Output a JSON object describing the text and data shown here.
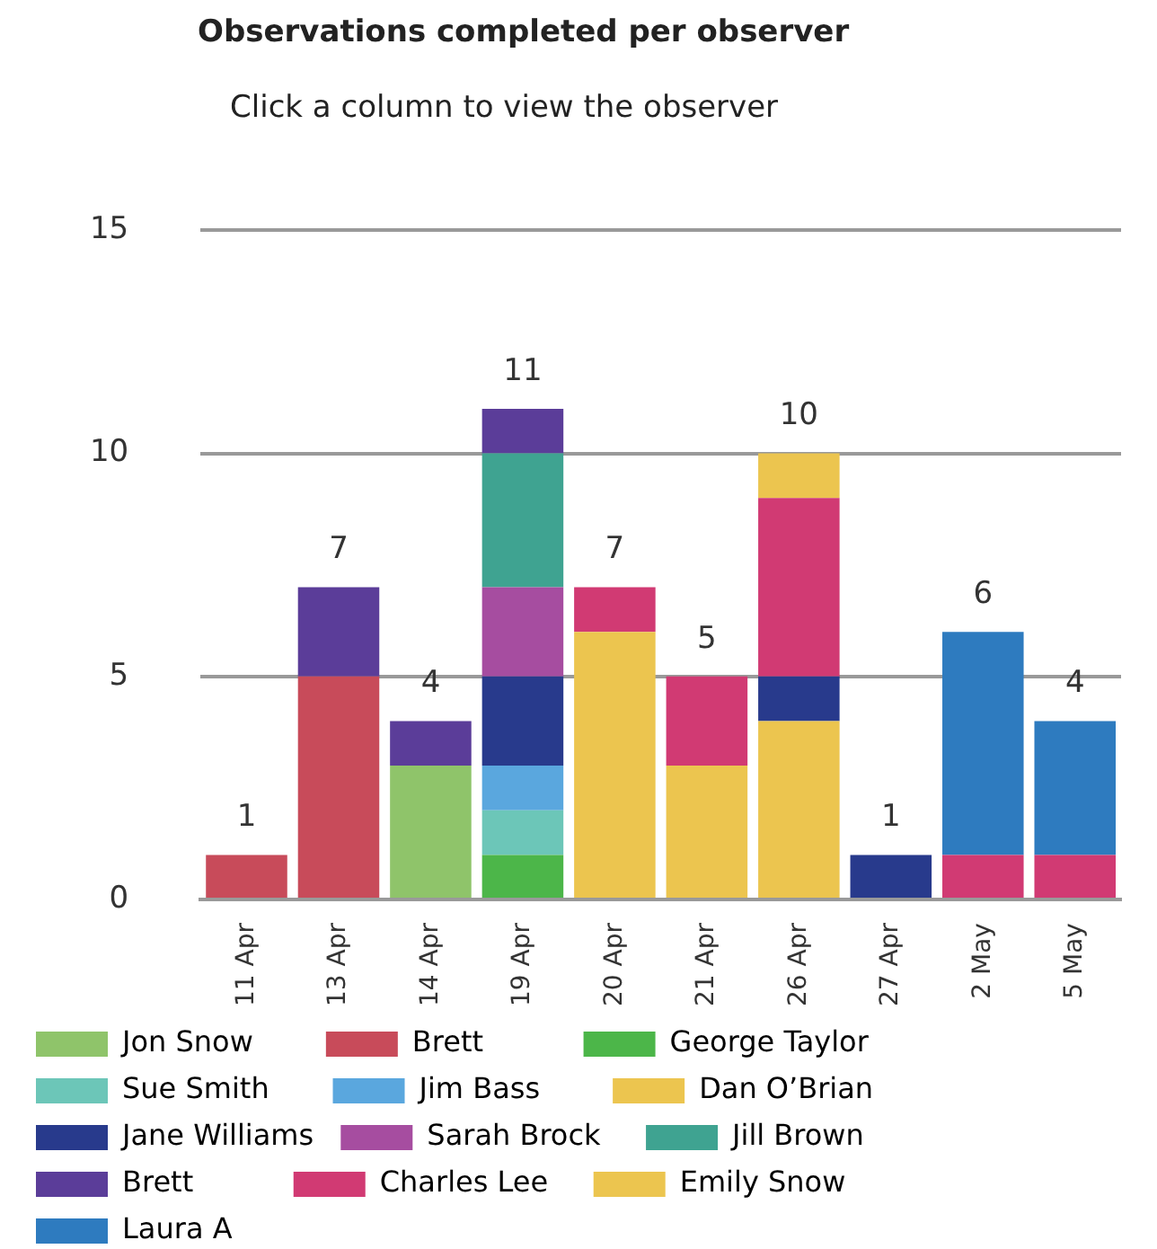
{
  "chart_data": {
    "type": "bar",
    "title": "Observations completed per observer",
    "subtitle": "Click a column to view the observer",
    "categories": [
      "11 Apr",
      "13 Apr",
      "14 Apr",
      "19 Apr",
      "20 Apr",
      "21 Apr",
      "26 Apr",
      "27 Apr",
      "2 May",
      "5 May"
    ],
    "stacked": true,
    "ylim": [
      0,
      15
    ],
    "yticks": [
      0,
      5,
      10,
      15
    ],
    "grid": "y",
    "legend": "bottom",
    "totals": [
      "1",
      "7",
      "4",
      "11",
      "7",
      "5",
      "10",
      "1",
      "6",
      "4"
    ],
    "series": [
      {
        "name": "Jon Snow",
        "color": "#8fc46a",
        "values": [
          null,
          null,
          3,
          null,
          null,
          null,
          null,
          null,
          null,
          null
        ]
      },
      {
        "name": "Brett",
        "color": "#c84b5a",
        "values": [
          1,
          5,
          null,
          null,
          null,
          null,
          null,
          null,
          null,
          null
        ]
      },
      {
        "name": "George Taylor",
        "color": "#4cb649",
        "values": [
          null,
          null,
          null,
          1,
          null,
          null,
          null,
          null,
          null,
          null
        ]
      },
      {
        "name": "Sue Smith",
        "color": "#6cc6b8",
        "values": [
          null,
          null,
          null,
          1,
          null,
          null,
          null,
          null,
          null,
          null
        ]
      },
      {
        "name": "Jim Bass",
        "color": "#5aa7de",
        "values": [
          null,
          null,
          null,
          1,
          null,
          null,
          null,
          null,
          null,
          null
        ]
      },
      {
        "name": "Dan O’Brian",
        "color": "#ecc54f",
        "values": [
          null,
          null,
          null,
          null,
          6,
          3,
          4,
          null,
          null,
          null
        ]
      },
      {
        "name": "Jane Williams",
        "color": "#283a8c",
        "values": [
          null,
          null,
          null,
          2,
          null,
          null,
          1,
          1,
          null,
          null
        ]
      },
      {
        "name": "Sarah Brock",
        "color": "#a64da0",
        "values": [
          null,
          null,
          null,
          2,
          null,
          null,
          null,
          null,
          null,
          null
        ]
      },
      {
        "name": "Jill Brown",
        "color": "#3fa391",
        "values": [
          null,
          null,
          null,
          3,
          null,
          null,
          null,
          null,
          null,
          null
        ]
      },
      {
        "name": "Brett",
        "color": "#5b3d99",
        "values": [
          null,
          2,
          1,
          1,
          null,
          null,
          null,
          null,
          null,
          null
        ]
      },
      {
        "name": "Charles Lee",
        "color": "#d13a73",
        "values": [
          null,
          null,
          null,
          null,
          1,
          2,
          4,
          null,
          1,
          1
        ]
      },
      {
        "name": "Emily Snow",
        "color": "#ecc54f",
        "values": [
          null,
          null,
          null,
          null,
          null,
          null,
          1,
          null,
          null,
          null
        ]
      },
      {
        "name": "Laura A",
        "color": "#2e7bbf",
        "values": [
          null,
          null,
          null,
          null,
          null,
          null,
          null,
          null,
          5,
          3
        ]
      }
    ]
  }
}
